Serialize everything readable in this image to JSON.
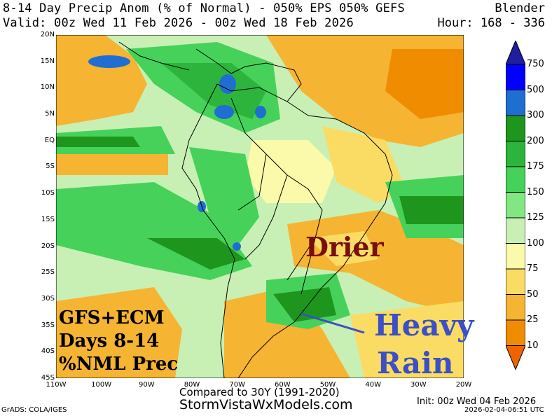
{
  "header": {
    "line1": "8-14 Day Precip Anom (% of Normal) - 050% EPS 050% GEFS",
    "line1_right": "Blender",
    "line2": "Valid: 00z Wed 11 Feb 2026 - 00z Wed 18 Feb 2026",
    "line2_right": "Hour: 168 - 336"
  },
  "axes": {
    "lat_ticks": [
      "20N",
      "15N",
      "10N",
      "5N",
      "EQ",
      "5S",
      "10S",
      "15S",
      "20S",
      "25S",
      "30S",
      "35S",
      "40S",
      "45S"
    ],
    "lon_ticks": [
      "110W",
      "100W",
      "90W",
      "80W",
      "70W",
      "60W",
      "50W",
      "40W",
      "30W",
      "20W"
    ]
  },
  "colorbar": {
    "levels": [
      "750",
      "500",
      "300",
      "200",
      "175",
      "150",
      "125",
      "100",
      "75",
      "50",
      "25",
      "10"
    ],
    "colors": [
      "#1e1ea0",
      "#0000ff",
      "#1f6ed2",
      "#1e961e",
      "#2db43c",
      "#46d25a",
      "#82e682",
      "#c8f0b4",
      "#fafaaa",
      "#fadc64",
      "#f5b432",
      "#f08c00",
      "#f06400"
    ]
  },
  "annotations": {
    "drier": "Drier",
    "heavy": "Heavy",
    "rain": "Rain",
    "model_label_1": "GFS+ECM",
    "model_label_2": "Days 8-14",
    "model_label_3": "%NML Prec"
  },
  "footer": {
    "compared": "Compared to 30Y (1991-2020)",
    "website": "StormVistaWxModels.com",
    "init": "Init: 00z Wed 04 Feb 2026",
    "grads": "GrADS: COLA/IGES",
    "timestamp": "2026-02-04-06:51 UTC"
  },
  "palette": {
    "drier_color": "#7a0d0d",
    "rain_color": "#3d4fc4",
    "model_label_color": "#000000"
  }
}
